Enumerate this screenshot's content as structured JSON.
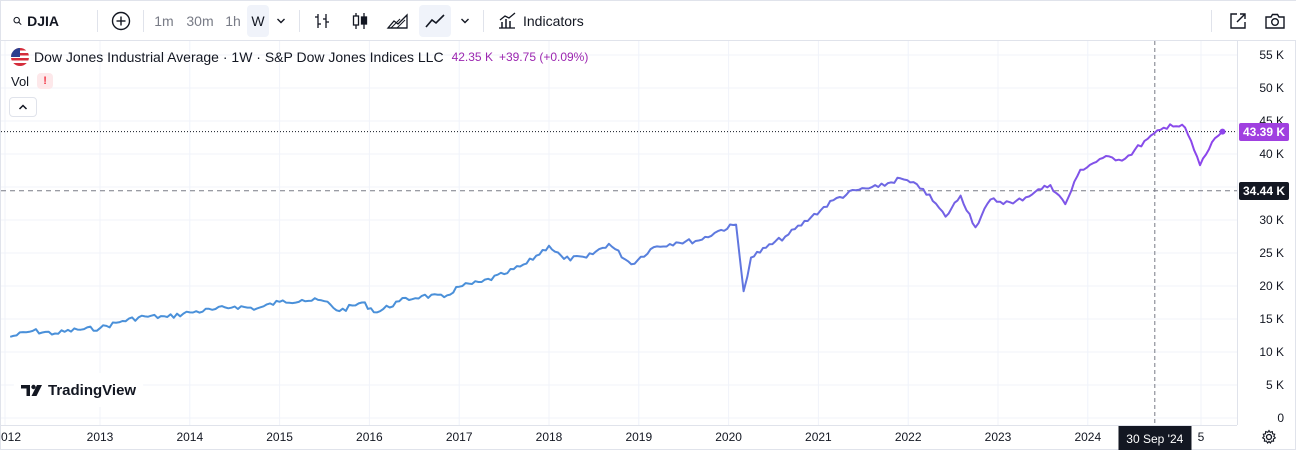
{
  "toolbar": {
    "symbol": "DJIA",
    "timeframes": [
      "1m",
      "30m",
      "1h",
      "W"
    ],
    "active_timeframe": "W",
    "indicators_label": "Indicators"
  },
  "legend": {
    "title": "Dow Jones Industrial Average · 1W · S&P Dow Jones Indices LLC",
    "value": "42.35 K",
    "change": "+39.75 (+0.09%)",
    "vol_label": "Vol",
    "vol_warning": "!"
  },
  "axes": {
    "y_ticks": [
      "55 K",
      "50 K",
      "45 K",
      "40 K",
      "35 K",
      "30 K",
      "25 K",
      "20 K",
      "15 K",
      "10 K",
      "5 K",
      "0"
    ],
    "x_ticks": [
      "012",
      "2013",
      "2014",
      "2015",
      "2016",
      "2017",
      "2018",
      "2019",
      "2020",
      "2021",
      "2022",
      "2023",
      "2024",
      "5"
    ],
    "crosshair_time": "30 Sep '24",
    "last_price_label": "43.39 K",
    "crosshair_price_label": "34.44 K"
  },
  "branding": {
    "logo_text": "TradingView"
  },
  "colors": {
    "line_start": "#4a90d9",
    "line_end": "#8e44ec",
    "last_price_badge": "#a040e0",
    "crosshair_badge": "#131722",
    "legend_value": "#9c27b0"
  },
  "chart_data": {
    "type": "line",
    "series": [
      {
        "values": [
          [
            "2012-01",
            12300
          ],
          [
            "2012-04",
            13200
          ],
          [
            "2012-07",
            12800
          ],
          [
            "2012-10",
            13400
          ],
          [
            "2013-01",
            13600
          ],
          [
            "2013-04",
            14700
          ],
          [
            "2013-07",
            15400
          ],
          [
            "2013-10",
            15300
          ],
          [
            "2014-01",
            16000
          ],
          [
            "2014-04",
            16400
          ],
          [
            "2014-07",
            16900
          ],
          [
            "2014-10",
            16600
          ],
          [
            "2015-01",
            17600
          ],
          [
            "2015-04",
            17900
          ],
          [
            "2015-07",
            17700
          ],
          [
            "2015-09",
            16200
          ],
          [
            "2015-12",
            17500
          ],
          [
            "2016-02",
            16000
          ],
          [
            "2016-05",
            17700
          ],
          [
            "2016-08",
            18500
          ],
          [
            "2016-11",
            18300
          ],
          [
            "2017-01",
            19900
          ],
          [
            "2017-04",
            20600
          ],
          [
            "2017-07",
            21800
          ],
          [
            "2017-10",
            23400
          ],
          [
            "2018-01",
            26100
          ],
          [
            "2018-03",
            24100
          ],
          [
            "2018-06",
            24300
          ],
          [
            "2018-09",
            26400
          ],
          [
            "2018-12",
            23300
          ],
          [
            "2019-03",
            25900
          ],
          [
            "2019-06",
            26600
          ],
          [
            "2019-09",
            26900
          ],
          [
            "2019-12",
            28500
          ],
          [
            "2020-02",
            29300
          ],
          [
            "2020-03",
            19200
          ],
          [
            "2020-04",
            24300
          ],
          [
            "2020-06",
            25800
          ],
          [
            "2020-09",
            27800
          ],
          [
            "2020-12",
            30400
          ],
          [
            "2021-03",
            33000
          ],
          [
            "2021-06",
            34500
          ],
          [
            "2021-09",
            35000
          ],
          [
            "2021-12",
            36300
          ],
          [
            "2022-03",
            34700
          ],
          [
            "2022-06",
            30500
          ],
          [
            "2022-08",
            33700
          ],
          [
            "2022-10",
            28900
          ],
          [
            "2022-12",
            33100
          ],
          [
            "2023-03",
            32500
          ],
          [
            "2023-06",
            34300
          ],
          [
            "2023-08",
            35300
          ],
          [
            "2023-10",
            32400
          ],
          [
            "2023-12",
            37600
          ],
          [
            "2024-03",
            39400
          ],
          [
            "2024-06",
            39300
          ],
          [
            "2024-09",
            42300
          ],
          [
            "2024-12",
            44500
          ],
          [
            "2025-02",
            44000
          ],
          [
            "2025-04",
            38300
          ],
          [
            "2025-06",
            42400
          ],
          [
            "2025-07",
            43400
          ]
        ]
      }
    ],
    "ylim": [
      0,
      57000
    ],
    "y_ticks": [
      0,
      5000,
      10000,
      15000,
      20000,
      25000,
      30000,
      35000,
      40000,
      45000,
      50000,
      55000
    ],
    "last_value": 43390,
    "crosshair_value": 34440,
    "crosshair_date": "2024-09-30",
    "grid": true,
    "legend": "top-left"
  }
}
